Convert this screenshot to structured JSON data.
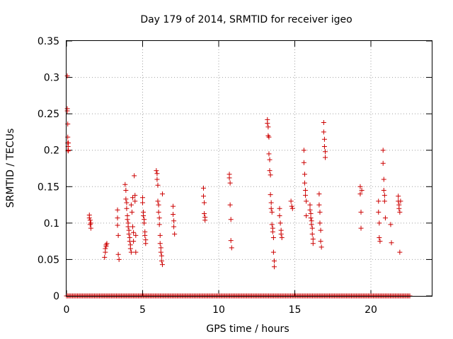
{
  "chart_data": {
    "type": "scatter",
    "title": "Day 179 of 2014, SRMTID for receiver igeo",
    "xlabel": "GPS time / hours",
    "ylabel": "SRMTID / TECUs",
    "xlim": [
      0,
      24
    ],
    "ylim": [
      0,
      0.35
    ],
    "grid": true,
    "x_ticks": [
      0,
      5,
      10,
      15,
      20
    ],
    "x_tick_labels": [
      "0",
      "5",
      "10",
      "15",
      "20"
    ],
    "y_ticks": [
      0,
      0.05,
      0.1,
      0.15,
      0.2,
      0.25,
      0.3,
      0.35
    ],
    "y_tick_labels": [
      "0",
      "0.05",
      "0.1",
      "0.15",
      "0.2",
      "0.25",
      "0.3",
      "0.35"
    ],
    "marker": "+",
    "series": [
      {
        "name": "SRMTID",
        "color": "#cc0000",
        "x": [
          0.05,
          0.05,
          0.05,
          0.08,
          0.08,
          0.08,
          0.1,
          0.1,
          0.1,
          0.12,
          0.12,
          1.5,
          1.5,
          1.55,
          1.55,
          1.6,
          1.6,
          2.5,
          2.55,
          2.55,
          2.6,
          2.6,
          2.65,
          3.35,
          3.35,
          3.35,
          3.4,
          3.4,
          3.45,
          3.85,
          3.9,
          3.9,
          3.95,
          3.95,
          4.0,
          4.0,
          4.05,
          4.05,
          4.1,
          4.1,
          4.15,
          4.15,
          4.2,
          4.2,
          4.25,
          4.25,
          4.3,
          4.35,
          4.35,
          4.4,
          4.4,
          4.45,
          4.5,
          4.5,
          4.55,
          4.55,
          5.0,
          5.0,
          5.05,
          5.05,
          5.1,
          5.1,
          5.15,
          5.15,
          5.2,
          5.2,
          5.9,
          5.95,
          5.95,
          6.0,
          6.0,
          6.05,
          6.05,
          6.1,
          6.1,
          6.15,
          6.15,
          6.2,
          6.2,
          6.25,
          6.25,
          6.3,
          6.3,
          7.0,
          7.0,
          7.05,
          7.05,
          7.1,
          9.0,
          9.0,
          9.05,
          9.05,
          9.1,
          9.1,
          10.7,
          10.7,
          10.75,
          10.75,
          10.8,
          10.8,
          10.85,
          13.2,
          13.2,
          13.25,
          13.25,
          13.3,
          13.3,
          13.35,
          13.35,
          13.4,
          13.4,
          13.45,
          13.45,
          13.5,
          13.5,
          13.55,
          13.55,
          13.6,
          13.6,
          13.65,
          13.65,
          14.0,
          14.0,
          14.05,
          14.1,
          14.1,
          14.15,
          14.75,
          14.8,
          14.85,
          15.6,
          15.6,
          15.65,
          15.65,
          15.7,
          15.7,
          15.75,
          15.75,
          16.0,
          16.0,
          16.05,
          16.05,
          16.1,
          16.1,
          16.15,
          16.15,
          16.2,
          16.2,
          16.6,
          16.6,
          16.65,
          16.65,
          16.7,
          16.7,
          16.75,
          16.9,
          16.9,
          16.95,
          16.95,
          17.0,
          17.0,
          19.3,
          19.3,
          19.35,
          19.35,
          19.4,
          20.5,
          20.5,
          20.55,
          20.55,
          20.6,
          20.8,
          20.8,
          20.85,
          20.85,
          20.9,
          20.9,
          20.95,
          21.3,
          21.35,
          21.8,
          21.8,
          21.85,
          21.85,
          21.9,
          21.9,
          21.95
        ],
        "y": [
          0.302,
          0.257,
          0.254,
          0.236,
          0.218,
          0.21,
          0.205,
          0.2,
          0.199,
          0.2,
          0.21,
          0.111,
          0.107,
          0.104,
          0.098,
          0.093,
          0.1,
          0.053,
          0.06,
          0.065,
          0.068,
          0.07,
          0.072,
          0.118,
          0.107,
          0.097,
          0.083,
          0.057,
          0.05,
          0.153,
          0.145,
          0.133,
          0.128,
          0.12,
          0.11,
          0.105,
          0.1,
          0.095,
          0.09,
          0.085,
          0.08,
          0.075,
          0.07,
          0.065,
          0.125,
          0.06,
          0.115,
          0.135,
          0.095,
          0.087,
          0.075,
          0.165,
          0.138,
          0.13,
          0.06,
          0.083,
          0.135,
          0.128,
          0.115,
          0.11,
          0.105,
          0.1,
          0.088,
          0.083,
          0.077,
          0.072,
          0.172,
          0.168,
          0.16,
          0.152,
          0.13,
          0.125,
          0.115,
          0.107,
          0.098,
          0.083,
          0.072,
          0.066,
          0.06,
          0.055,
          0.048,
          0.043,
          0.14,
          0.123,
          0.112,
          0.103,
          0.095,
          0.085,
          0.148,
          0.137,
          0.128,
          0.113,
          0.108,
          0.104,
          0.167,
          0.162,
          0.155,
          0.125,
          0.105,
          0.076,
          0.066,
          0.242,
          0.237,
          0.232,
          0.22,
          0.218,
          0.195,
          0.187,
          0.172,
          0.166,
          0.139,
          0.128,
          0.12,
          0.115,
          0.098,
          0.093,
          0.088,
          0.08,
          0.06,
          0.048,
          0.04,
          0.12,
          0.11,
          0.1,
          0.09,
          0.085,
          0.08,
          0.13,
          0.123,
          0.12,
          0.2,
          0.183,
          0.167,
          0.155,
          0.145,
          0.138,
          0.13,
          0.11,
          0.125,
          0.118,
          0.113,
          0.107,
          0.103,
          0.098,
          0.093,
          0.085,
          0.078,
          0.072,
          0.14,
          0.125,
          0.115,
          0.1,
          0.09,
          0.075,
          0.067,
          0.238,
          0.225,
          0.215,
          0.205,
          0.198,
          0.19,
          0.15,
          0.14,
          0.115,
          0.093,
          0.145,
          0.13,
          0.115,
          0.1,
          0.08,
          0.075,
          0.2,
          0.182,
          0.16,
          0.145,
          0.138,
          0.13,
          0.107,
          0.098,
          0.073,
          0.137,
          0.13,
          0.125,
          0.12,
          0.115,
          0.06,
          0.13
        ],
        "baseline_x_range": [
          0,
          22.6
        ],
        "baseline_y": 0
      }
    ]
  }
}
